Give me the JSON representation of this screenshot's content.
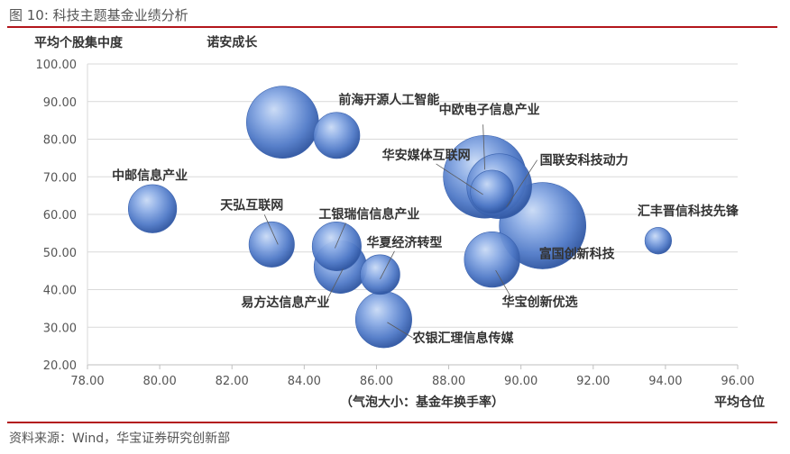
{
  "figure": {
    "title": "图 10:  科技主题基金业绩分析",
    "source": "资料来源：Wind，华宝证券研究创新部"
  },
  "colors": {
    "rule": "#b3161c",
    "bubble": "#4a73c0",
    "axis": "#bfbfbf",
    "grid": "#d9d9d9"
  },
  "chart_data": {
    "type": "bubble",
    "ylabel": "平均个股集中度",
    "xlabel": "平均仓位",
    "size_note": "（气泡大小：基金年换手率）",
    "xlim": [
      78,
      96
    ],
    "ylim": [
      20,
      100
    ],
    "x_ticks": [
      "78.00",
      "80.00",
      "82.00",
      "84.00",
      "86.00",
      "88.00",
      "90.00",
      "92.00",
      "94.00",
      "96.00"
    ],
    "y_ticks": [
      "20.00",
      "30.00",
      "40.00",
      "50.00",
      "60.00",
      "70.00",
      "80.00",
      "90.00",
      "100.00"
    ],
    "grid": "horizontal",
    "points": [
      {
        "label": "诺安成长",
        "x": 83.4,
        "y": 84.5,
        "size": 10.0
      },
      {
        "label": "前海开源人工智能",
        "x": 84.9,
        "y": 81.0,
        "size": 6.4
      },
      {
        "label": "中欧电子信息产业",
        "x": 89.0,
        "y": 70.0,
        "size": 11.5
      },
      {
        "label": "华安媒体互联网",
        "x": 89.2,
        "y": 66.0,
        "size": 6.0
      },
      {
        "label": "国联安科技动力",
        "x": 89.4,
        "y": 67.5,
        "size": 9.0
      },
      {
        "label": "中邮信息产业",
        "x": 79.8,
        "y": 61.5,
        "size": 6.7
      },
      {
        "label": "天弘互联网",
        "x": 83.1,
        "y": 52.0,
        "size": 6.3
      },
      {
        "label": "工银瑞信信息产业",
        "x": 84.9,
        "y": 51.5,
        "size": 6.8
      },
      {
        "label": "易方达信息产业",
        "x": 85.0,
        "y": 46.0,
        "size": 7.3
      },
      {
        "label": "华夏经济转型",
        "x": 86.1,
        "y": 44.0,
        "size": 5.5
      },
      {
        "label": "富国创新科技",
        "x": 90.6,
        "y": 57.0,
        "size": 12.0
      },
      {
        "label": "华宝创新优选",
        "x": 89.2,
        "y": 48.0,
        "size": 7.7
      },
      {
        "label": "农银汇理信息传媒",
        "x": 86.2,
        "y": 32.0,
        "size": 7.8
      },
      {
        "label": "汇丰晋信科技先锋",
        "x": 93.8,
        "y": 53.0,
        "size": 3.7
      }
    ]
  }
}
